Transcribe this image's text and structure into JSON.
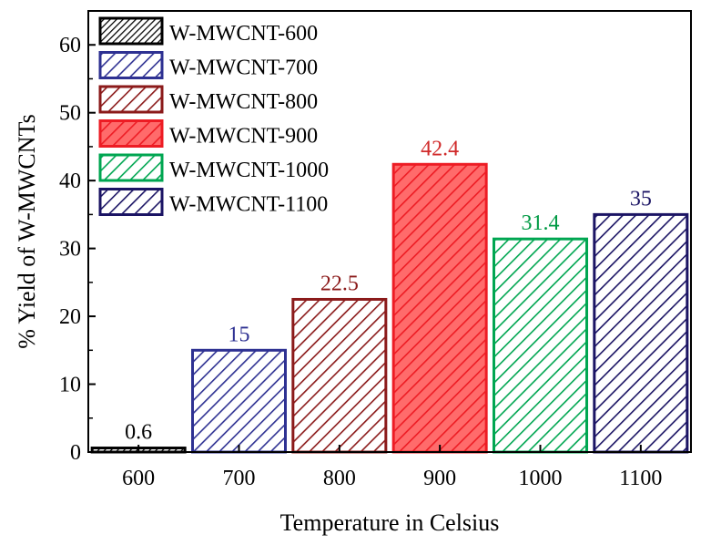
{
  "chart_data": {
    "type": "bar",
    "xlabel": "Temperature in Celsius",
    "ylabel": "% Yield of W-MWCNTs",
    "categories": [
      "600",
      "700",
      "800",
      "900",
      "1000",
      "1100"
    ],
    "values": [
      0.6,
      15,
      22.5,
      42.4,
      31.4,
      35
    ],
    "value_labels": [
      "0.6",
      "15",
      "22.5",
      "42.4",
      "31.4",
      "35"
    ],
    "ylim": [
      0,
      65
    ],
    "yticks": [
      "0",
      "10",
      "20",
      "30",
      "40",
      "50",
      "60"
    ],
    "series_names": [
      "W-MWCNT-600",
      "W-MWCNT-700",
      "W-MWCNT-800",
      "W-MWCNT-900",
      "W-MWCNT-1000",
      "W-MWCNT-1100"
    ],
    "colors": [
      "#000000",
      "#2e3192",
      "#8b1a1a",
      "#ed1c24",
      "#00a651",
      "#1b1464"
    ],
    "label_colors": [
      "#000000",
      "#2e3192",
      "#8b1a1a",
      "#d02a2a",
      "#009a44",
      "#1b1464"
    ],
    "fill_styles": [
      "hatch-dense",
      "hatch",
      "hatch",
      "hatch-light",
      "hatch",
      "hatch"
    ],
    "legend_position": "top-left",
    "grid": false
  }
}
